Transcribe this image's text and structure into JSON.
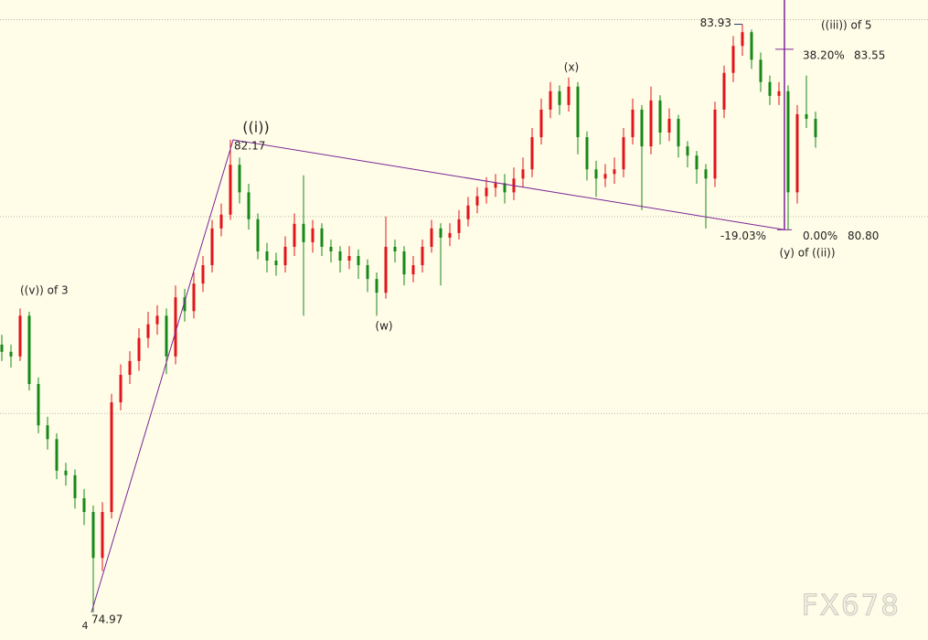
{
  "chart_data": {
    "type": "candlestick",
    "open": [
      79.05,
      78.94,
      78.87,
      79.49,
      78.45,
      77.82,
      77.61,
      77.13,
      77.06,
      76.71,
      76.5,
      75.8,
      76.5,
      78.17,
      78.59,
      78.8,
      79.15,
      79.36,
      79.49,
      78.87,
      79.77,
      79.56,
      79.98,
      80.26,
      80.82,
      81.03,
      81.79,
      81.37,
      80.96,
      80.47,
      80.33,
      80.26,
      80.54,
      80.89,
      80.61,
      80.82,
      80.54,
      80.47,
      80.33,
      80.4,
      80.26,
      80.05,
      79.84,
      80.54,
      80.47,
      80.12,
      80.26,
      80.54,
      80.82,
      80.68,
      80.75,
      80.96,
      81.17,
      81.31,
      81.44,
      81.51,
      81.37,
      81.58,
      81.72,
      82.21,
      82.63,
      82.91,
      82.7,
      82.98,
      82.21,
      81.72,
      81.58,
      81.65,
      81.72,
      82.21,
      82.63,
      82.07,
      82.77,
      82.28,
      82.49,
      82.07,
      81.93,
      81.72,
      81.58,
      82.63,
      83.19,
      83.6,
      83.81,
      83.39,
      83.05,
      82.84,
      82.91,
      81.37,
      82.56,
      82.49
    ],
    "high": [
      79.2,
      79.05,
      79.6,
      79.55,
      78.55,
      77.95,
      77.7,
      77.25,
      77.15,
      76.85,
      76.6,
      76.65,
      78.3,
      78.75,
      78.95,
      79.3,
      79.55,
      79.65,
      79.6,
      79.95,
      79.9,
      80.15,
      80.4,
      80.95,
      81.2,
      82.17,
      81.9,
      81.5,
      81.05,
      80.6,
      80.45,
      80.7,
      81.05,
      81.63,
      80.95,
      80.9,
      80.65,
      80.55,
      80.55,
      80.5,
      80.35,
      80.15,
      81.0,
      80.65,
      80.55,
      80.4,
      80.65,
      80.95,
      80.9,
      80.9,
      81.1,
      81.3,
      81.45,
      81.6,
      81.65,
      81.65,
      81.75,
      81.9,
      82.35,
      82.8,
      83.05,
      83.0,
      83.12,
      83.05,
      82.3,
      81.85,
      81.8,
      81.9,
      82.35,
      82.8,
      82.7,
      82.98,
      82.85,
      82.65,
      82.55,
      82.15,
      82.0,
      81.8,
      82.75,
      83.3,
      83.75,
      83.93,
      83.85,
      83.5,
      83.15,
      83.05,
      83.0,
      82.7,
      83.15,
      82.6
    ],
    "low": [
      78.8,
      78.7,
      78.8,
      78.35,
      77.7,
      77.45,
      77.0,
      76.9,
      76.55,
      76.3,
      74.97,
      75.6,
      76.4,
      78.05,
      78.45,
      78.65,
      79.0,
      79.2,
      78.6,
      78.75,
      79.4,
      79.45,
      79.85,
      80.15,
      80.7,
      80.95,
      81.2,
      80.8,
      80.35,
      80.15,
      80.1,
      80.15,
      80.4,
      79.49,
      80.45,
      80.4,
      80.3,
      80.15,
      80.2,
      80.05,
      79.85,
      79.49,
      79.75,
      80.3,
      79.95,
      80.0,
      80.15,
      80.45,
      79.95,
      80.55,
      80.65,
      80.85,
      81.05,
      81.2,
      81.3,
      81.2,
      81.25,
      81.45,
      81.6,
      82.1,
      82.5,
      82.55,
      82.6,
      81.95,
      81.55,
      81.3,
      81.45,
      81.5,
      81.6,
      82.1,
      81.1,
      81.95,
      82.1,
      82.15,
      81.9,
      81.75,
      81.5,
      80.82,
      81.45,
      82.5,
      83.05,
      83.45,
      83.25,
      82.9,
      82.7,
      82.7,
      80.8,
      81.2,
      82.35,
      82.05
    ],
    "close": [
      78.94,
      78.87,
      79.49,
      78.45,
      77.82,
      77.61,
      77.13,
      77.06,
      76.71,
      76.5,
      75.8,
      76.5,
      78.17,
      78.59,
      78.8,
      79.15,
      79.36,
      79.49,
      78.87,
      79.77,
      79.56,
      79.98,
      80.26,
      80.82,
      81.03,
      81.79,
      81.37,
      80.96,
      80.47,
      80.33,
      80.26,
      80.54,
      80.89,
      80.61,
      80.82,
      80.54,
      80.47,
      80.33,
      80.4,
      80.26,
      80.05,
      79.84,
      80.54,
      80.47,
      80.12,
      80.26,
      80.54,
      80.82,
      80.68,
      80.75,
      80.96,
      81.17,
      81.31,
      81.44,
      81.51,
      81.37,
      81.58,
      81.72,
      82.21,
      82.63,
      82.91,
      82.7,
      82.98,
      82.21,
      81.72,
      81.58,
      81.65,
      81.72,
      82.21,
      82.63,
      82.07,
      82.77,
      82.28,
      82.49,
      82.07,
      81.93,
      81.72,
      81.58,
      82.63,
      83.19,
      83.6,
      83.81,
      83.39,
      83.05,
      82.84,
      82.91,
      81.37,
      82.56,
      82.49,
      82.21
    ],
    "up_color": "#e3141b",
    "down_color": "#16891a",
    "ylim": [
      74.55,
      84.3
    ],
    "yticks": [
      78,
      81,
      84
    ],
    "grid": true,
    "wave_labels": [
      "((v)) of 3",
      "4",
      "((i))",
      "(w)",
      "(x)",
      "((iii)) of 5",
      "(y) of ((ii))"
    ],
    "pivots": [
      74.97,
      82.17,
      83.93
    ],
    "fibonacci": {
      "levels": [
        {
          "percent": {
            "value": 38.2,
            "label": "38.20%"
          },
          "price": 83.55
        },
        {
          "percent": {
            "value": 0,
            "label": "0.00%"
          },
          "price": {
            "value": 80.8,
            "label": "80.80"
          }
        }
      ],
      "extension": {
        "value": -19.03,
        "label": "-19.03%"
      }
    },
    "watermark": "FX678"
  }
}
